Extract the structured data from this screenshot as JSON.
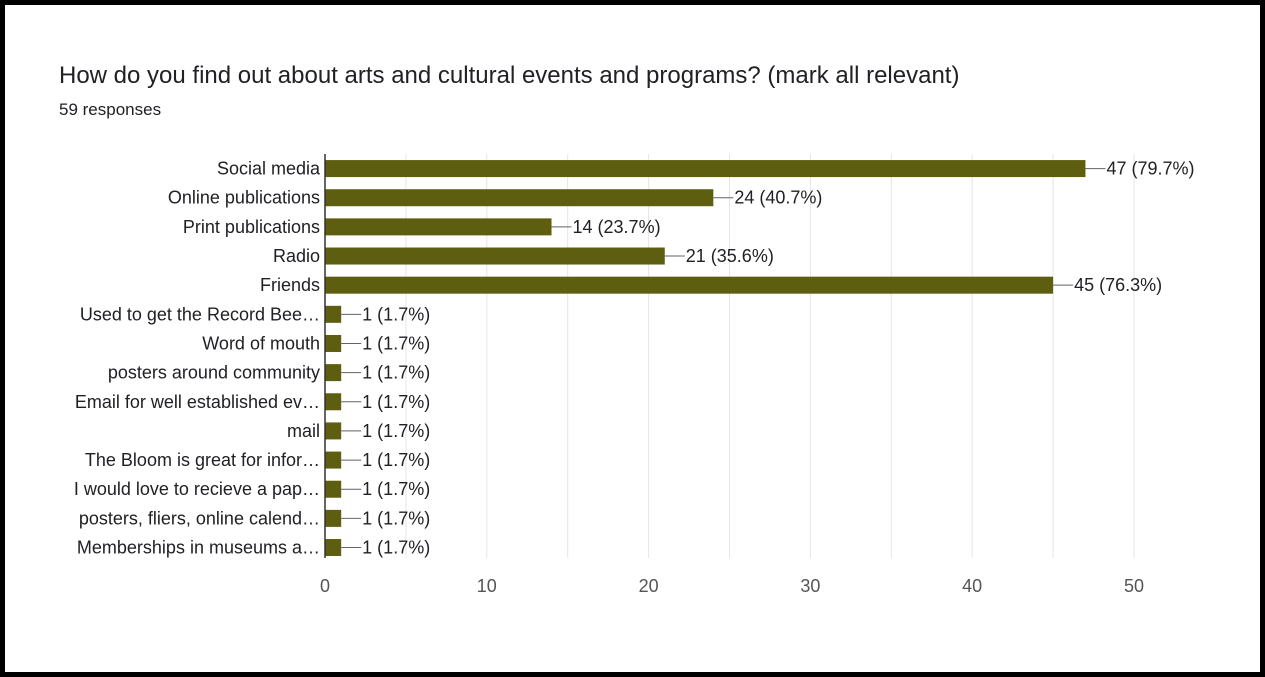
{
  "header": {
    "title": "How do you find out about arts and cultural events and programs? (mark all relevant)",
    "responses": "59 responses"
  },
  "colors": {
    "bar": "#5d5e0f",
    "grid": "#e5e5e5",
    "axis": "#333333",
    "text": "#202124",
    "tick_text": "#555555",
    "border": "#000000"
  },
  "chart_data": {
    "type": "bar",
    "orientation": "horizontal",
    "title": "How do you find out about arts and cultural events and programs? (mark all relevant)",
    "xlabel": "",
    "ylabel": "",
    "xlim": [
      0,
      50
    ],
    "x_ticks": [
      0,
      10,
      20,
      30,
      40,
      50
    ],
    "grid": true,
    "categories": [
      "Social media",
      "Online publications",
      "Print publications",
      "Radio",
      "Friends",
      "Used to get the Record Bee…",
      "Word of mouth",
      "posters around community",
      "Email for well established ev…",
      "mail",
      "The Bloom is great for infor…",
      "I would love to recieve a pap…",
      "posters, fliers, online calend…",
      "Memberships in museums a…"
    ],
    "values": [
      47,
      24,
      14,
      21,
      45,
      1,
      1,
      1,
      1,
      1,
      1,
      1,
      1,
      1
    ],
    "data_labels": [
      "47 (79.7%)",
      "24 (40.7%)",
      "14 (23.7%)",
      "21 (35.6%)",
      "45 (76.3%)",
      "1 (1.7%)",
      "1 (1.7%)",
      "1 (1.7%)",
      "1 (1.7%)",
      "1 (1.7%)",
      "1 (1.7%)",
      "1 (1.7%)",
      "1 (1.7%)",
      "1 (1.7%)"
    ]
  }
}
